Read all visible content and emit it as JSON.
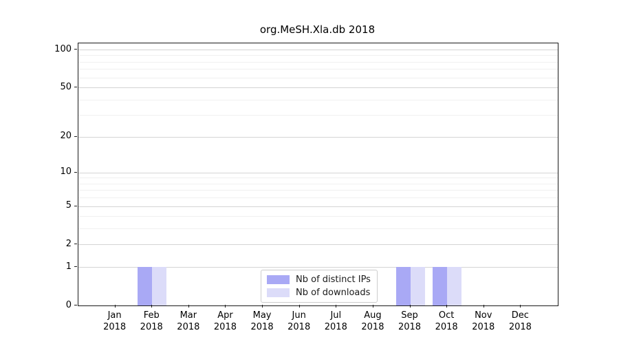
{
  "chart_data": {
    "type": "bar",
    "title": "org.MeSH.Xla.db 2018",
    "year": "2018",
    "categories": [
      "Jan",
      "Feb",
      "Mar",
      "Apr",
      "May",
      "Jun",
      "Jul",
      "Aug",
      "Sep",
      "Oct",
      "Nov",
      "Dec"
    ],
    "series": [
      {
        "name": "Nb of distinct IPs",
        "color": "#a9a9f5",
        "values": [
          0,
          1,
          0,
          0,
          0,
          0,
          0,
          0,
          1,
          1,
          0,
          0
        ]
      },
      {
        "name": "Nb of downloads",
        "color": "#dcdcf9",
        "values": [
          0,
          1,
          0,
          0,
          0,
          0,
          0,
          0,
          1,
          1,
          0,
          0
        ]
      }
    ],
    "y_axis": {
      "scale": "log1p",
      "major_ticks": [
        0,
        1,
        2,
        5,
        10,
        20,
        50,
        100
      ],
      "minor_ticks": [
        3,
        4,
        6,
        7,
        8,
        9,
        30,
        40,
        60,
        70,
        80,
        90
      ],
      "ylim": [
        0,
        112
      ]
    },
    "grid": true,
    "legend": {
      "position": "lower center"
    }
  },
  "colors": {
    "major_grid": "#d4d4d4",
    "minor_grid": "#f0f0f0",
    "spine": "#1a1a1a",
    "distinct_ips_bar": "#a9a9f5",
    "downloads_bar": "#dcdcf9"
  }
}
